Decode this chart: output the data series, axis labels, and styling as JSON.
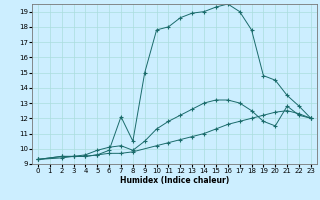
{
  "xlabel": "Humidex (Indice chaleur)",
  "bg_color": "#cceeff",
  "line_color": "#1a6b6b",
  "grid_color": "#aadddd",
  "xlim": [
    -0.5,
    23.5
  ],
  "ylim": [
    9,
    19.5
  ],
  "xticks": [
    0,
    1,
    2,
    3,
    4,
    5,
    6,
    7,
    8,
    9,
    10,
    11,
    12,
    13,
    14,
    15,
    16,
    17,
    18,
    19,
    20,
    21,
    22,
    23
  ],
  "yticks": [
    9,
    10,
    11,
    12,
    13,
    14,
    15,
    16,
    17,
    18,
    19
  ],
  "lines": [
    {
      "x": [
        0,
        2,
        3,
        4,
        5,
        6,
        7,
        8,
        10,
        11,
        12,
        13,
        14,
        15,
        16,
        17,
        18,
        19,
        20,
        21,
        22,
        23
      ],
      "y": [
        9.3,
        9.5,
        9.5,
        9.5,
        9.6,
        9.7,
        9.7,
        9.8,
        10.2,
        10.4,
        10.6,
        10.8,
        11.0,
        11.3,
        11.6,
        11.8,
        12.0,
        12.2,
        12.4,
        12.5,
        12.3,
        12.0
      ]
    },
    {
      "x": [
        0,
        2,
        3,
        4,
        5,
        6,
        7,
        8,
        9,
        10,
        11,
        12,
        13,
        14,
        15,
        16,
        17,
        18,
        19,
        20,
        21,
        22,
        23
      ],
      "y": [
        9.3,
        9.5,
        9.5,
        9.6,
        9.9,
        10.1,
        10.2,
        9.9,
        10.5,
        11.3,
        11.8,
        12.2,
        12.6,
        13.0,
        13.2,
        13.2,
        13.0,
        12.5,
        11.8,
        11.5,
        12.8,
        12.2,
        12.0
      ]
    },
    {
      "x": [
        0,
        2,
        3,
        4,
        5,
        6,
        7,
        8,
        9,
        10,
        11,
        12,
        13,
        14,
        15,
        16,
        17,
        18,
        19,
        20,
        21,
        22,
        23
      ],
      "y": [
        9.3,
        9.4,
        9.5,
        9.5,
        9.6,
        9.9,
        12.1,
        10.5,
        15.0,
        17.8,
        18.0,
        18.6,
        18.9,
        19.0,
        19.3,
        19.5,
        19.0,
        17.8,
        14.8,
        14.5,
        13.5,
        12.8,
        12.0
      ]
    }
  ]
}
